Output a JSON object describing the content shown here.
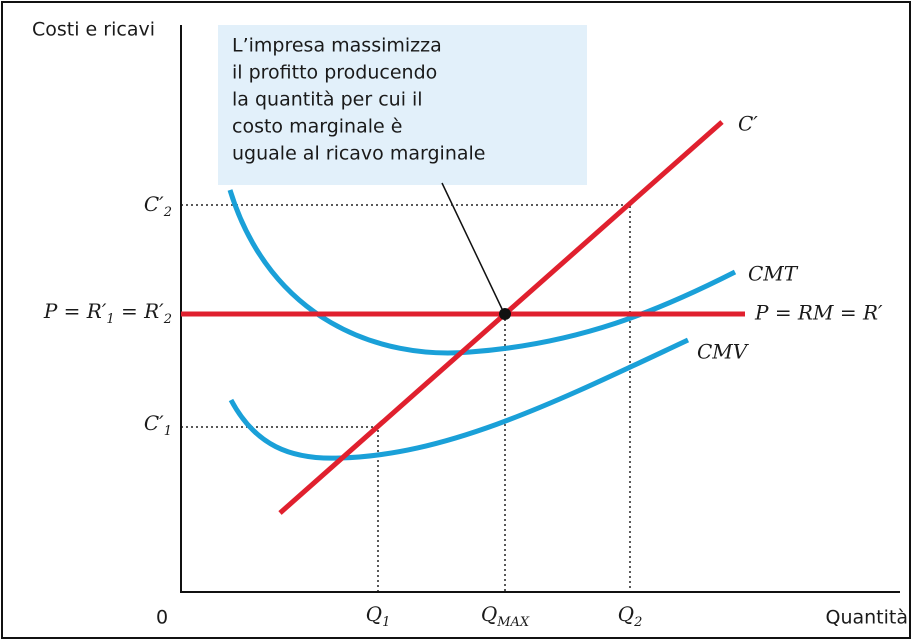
{
  "axes": {
    "y_label": "Costi e ricavi",
    "x_label": "Quantità",
    "origin": "0"
  },
  "callout": {
    "lines": [
      "L’impresa massimizza",
      "il profitto producendo",
      "la quantità per cui il",
      "costo marginale è",
      "uguale al ricavo marginale"
    ]
  },
  "curves": {
    "mc": "C′",
    "atc": "CMT",
    "avc": "CMV",
    "price": "P = RM = R′"
  },
  "y_marks": [
    {
      "main": "C′",
      "sub": "2"
    },
    {
      "main": "P = R′",
      "sub": "1",
      "rest": " = R′",
      "sub2": "2"
    },
    {
      "main": "C′",
      "sub": "1"
    }
  ],
  "x_marks": [
    {
      "main": "Q",
      "sub": "1"
    },
    {
      "main": "Q",
      "sub": "MAX"
    },
    {
      "main": "Q",
      "sub": "2"
    }
  ]
}
